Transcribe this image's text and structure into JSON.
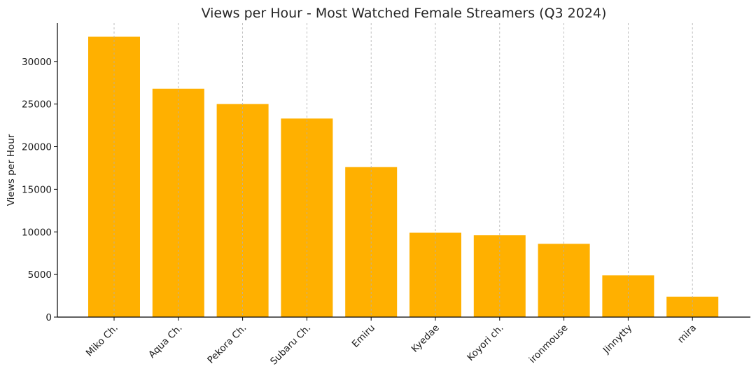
{
  "chart_data": {
    "type": "bar",
    "title": "Views per Hour - Most Watched Female Streamers (Q3 2024)",
    "xlabel": "",
    "ylabel": "Views per Hour",
    "categories": [
      "Miko Ch.",
      "Aqua Ch.",
      "Pekora Ch.",
      "Subaru Ch.",
      "Emiru",
      "Kyedae",
      "Koyori ch.",
      "ironmouse",
      "Jinnytty",
      "mira"
    ],
    "values": [
      32900,
      26800,
      25000,
      23300,
      17600,
      9900,
      9600,
      8600,
      4900,
      2400
    ],
    "ylim": [
      0,
      34500
    ],
    "yticks": [
      0,
      5000,
      10000,
      15000,
      20000,
      25000,
      30000
    ],
    "bar_color": "#FFB000",
    "grid": "vertical-dashed",
    "legend": "none"
  }
}
